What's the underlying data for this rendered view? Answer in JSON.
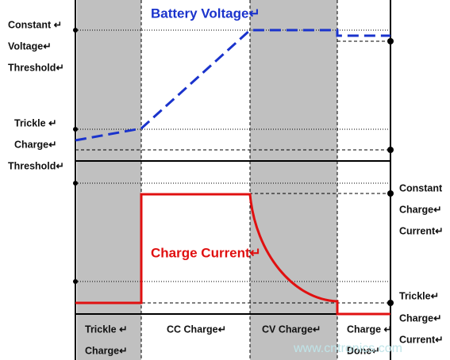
{
  "voltage_label": "Battery Voltage↵",
  "current_label": "Charge Current↵",
  "left_labels": {
    "cv_threshold": [
      "Constant ↵",
      "Voltage↵",
      "Threshold↵"
    ],
    "trickle_threshold": [
      "Trickle ↵",
      "Charge↵",
      "Threshold↵"
    ]
  },
  "right_labels": {
    "constant_current": [
      "Constant",
      "Charge↵",
      "Current↵"
    ],
    "trickle_current": [
      "Trickle↵",
      "Charge↵",
      "Current↵"
    ]
  },
  "phases": [
    {
      "lines": [
        "Trickle ↵",
        "Charge↵"
      ]
    },
    {
      "lines": [
        "CC Charge↵"
      ]
    },
    {
      "lines": [
        "CV Charge↵"
      ]
    },
    {
      "lines": [
        "Charge ↵",
        "Done↵"
      ]
    }
  ],
  "watermark": "www.cntronics.com"
}
